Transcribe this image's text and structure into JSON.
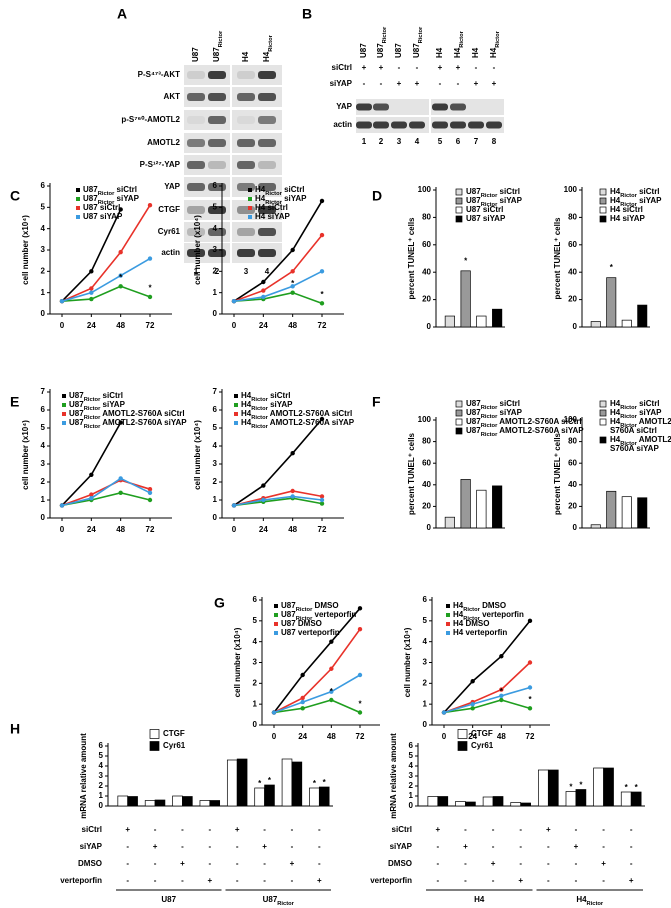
{
  "panel_labels": [
    "A",
    "B",
    "C",
    "D",
    "E",
    "F",
    "G",
    "H"
  ],
  "blot_a": {
    "lanes": [
      "U87",
      "U87Rictor",
      "H4",
      "H4Rictor"
    ],
    "rows": [
      "P-S⁴⁷³-AKT",
      "AKT",
      "p-S⁷⁶⁰-AMOTL2",
      "AMOTL2",
      "P-S¹²⁷-YAP",
      "YAP",
      "CTGF",
      "Cyr61",
      "actin"
    ],
    "lane_numbers": [
      1,
      2,
      3,
      4
    ]
  },
  "blot_b": {
    "lanes": [
      "U87",
      "U87Rictor",
      "U87",
      "U87Rictor",
      "H4",
      "H4Rictor",
      "H4",
      "H4Rictor"
    ],
    "conditions": [
      {
        "name": "siCtrl",
        "signs": [
          "+",
          "+",
          "-",
          "-",
          "+",
          "+",
          "-",
          "-"
        ]
      },
      {
        "name": "siYAP",
        "signs": [
          "-",
          "-",
          "+",
          "+",
          "-",
          "-",
          "+",
          "+"
        ]
      }
    ],
    "rows": [
      "YAP",
      "actin"
    ],
    "lane_numbers": [
      1,
      2,
      3,
      4,
      5,
      6,
      7,
      8
    ]
  },
  "chart_data": [
    {
      "type": "line",
      "ylabel": "cell number (x10⁴)",
      "x": [
        0,
        24,
        48,
        72
      ],
      "xlim": [
        0,
        72
      ],
      "xticks": [
        0,
        24,
        48,
        72
      ],
      "ylim": [
        0,
        6
      ],
      "yticks": [
        0,
        1,
        2,
        3,
        4,
        5,
        6
      ],
      "series": [
        {
          "name": "U87Rictor siCtrl",
          "color": "#000000",
          "values": [
            0.6,
            2.0,
            4.9,
            null
          ]
        },
        {
          "name": "U87Rictor siYAP",
          "color": "#1f9e1f",
          "values": [
            0.6,
            0.7,
            1.3,
            0.8
          ]
        },
        {
          "name": "U87 siCtrl",
          "color": "#e8322a",
          "values": [
            0.6,
            1.2,
            2.9,
            5.1
          ]
        },
        {
          "name": "U87 siYAP",
          "color": "#3b9be0",
          "values": [
            0.6,
            1.0,
            1.8,
            2.6
          ]
        }
      ],
      "annotations": [
        {
          "text": "*",
          "x": 48,
          "y": 1.7
        },
        {
          "text": "*",
          "x": 72,
          "y": 1.2
        }
      ]
    },
    {
      "type": "line",
      "ylabel": "cell number (x10⁴)",
      "x": [
        0,
        24,
        48,
        72
      ],
      "xlim": [
        0,
        72
      ],
      "xticks": [
        0,
        24,
        48,
        72
      ],
      "ylim": [
        0,
        6
      ],
      "yticks": [
        0,
        1,
        2,
        3,
        4,
        5,
        6
      ],
      "series": [
        {
          "name": "H4Rictor siCtrl",
          "color": "#000000",
          "values": [
            0.6,
            1.5,
            3.0,
            5.3
          ]
        },
        {
          "name": "H4Rictor siYAP",
          "color": "#1f9e1f",
          "values": [
            0.6,
            0.7,
            1.0,
            0.5
          ]
        },
        {
          "name": "H4 siCtrl",
          "color": "#e8322a",
          "values": [
            0.6,
            1.1,
            2.0,
            3.7
          ]
        },
        {
          "name": "H4 siYAP",
          "color": "#3b9be0",
          "values": [
            0.6,
            0.8,
            1.3,
            2.0
          ]
        }
      ],
      "annotations": [
        {
          "text": "*",
          "x": 48,
          "y": 1.4
        },
        {
          "text": "*",
          "x": 72,
          "y": 0.9
        }
      ]
    },
    {
      "type": "bar",
      "ylabel": "percent TUNEL⁺ cells",
      "ylim": [
        0,
        100
      ],
      "yticks": [
        0,
        20,
        40,
        60,
        80,
        100
      ],
      "series": [
        {
          "name": "U87Rictor siCtrl",
          "color": "#dddddd",
          "values": [
            8
          ]
        },
        {
          "name": "U87Rictor siYAP",
          "color": "#999999",
          "values": [
            41
          ]
        },
        {
          "name": "U87 siCtrl",
          "color": "#ffffff",
          "values": [
            8
          ]
        },
        {
          "name": "U87 siYAP",
          "color": "#000000",
          "values": [
            13
          ]
        }
      ],
      "annotations": [
        {
          "text": "*",
          "x": 0,
          "series": 1,
          "y": 48
        }
      ]
    },
    {
      "type": "bar",
      "ylabel": "percent TUNEL⁺ cells",
      "ylim": [
        0,
        100
      ],
      "yticks": [
        0,
        20,
        40,
        60,
        80,
        100
      ],
      "series": [
        {
          "name": "H4Rictor siCtrl",
          "color": "#dddddd",
          "values": [
            4
          ]
        },
        {
          "name": "H4Rictor siYAP",
          "color": "#999999",
          "values": [
            36
          ]
        },
        {
          "name": "H4 siCtrl",
          "color": "#ffffff",
          "values": [
            5
          ]
        },
        {
          "name": "H4 siYAP",
          "color": "#000000",
          "values": [
            16
          ]
        }
      ],
      "annotations": [
        {
          "text": "*",
          "x": 0,
          "series": 1,
          "y": 43
        }
      ]
    },
    {
      "type": "line",
      "ylabel": "cell number (x10⁴)",
      "x": [
        0,
        24,
        48,
        72
      ],
      "xlim": [
        0,
        72
      ],
      "xticks": [
        0,
        24,
        48,
        72
      ],
      "ylim": [
        0,
        7
      ],
      "yticks": [
        0,
        1,
        2,
        3,
        4,
        5,
        6,
        7
      ],
      "series": [
        {
          "name": "U87Rictor siCtrl",
          "color": "#000000",
          "values": [
            0.7,
            2.4,
            5.3,
            null
          ]
        },
        {
          "name": "U87Rictor siYAP",
          "color": "#1f9e1f",
          "values": [
            0.7,
            1.0,
            1.4,
            1.0
          ]
        },
        {
          "name": "U87Rictor AMOTL2-S760A siCtrl",
          "color": "#e8322a",
          "values": [
            0.7,
            1.3,
            2.1,
            1.6
          ]
        },
        {
          "name": "U87Rictor AMOTL2-S760A siYAP",
          "color": "#3b9be0",
          "values": [
            0.7,
            1.1,
            2.2,
            1.4
          ]
        }
      ]
    },
    {
      "type": "line",
      "ylabel": "cell number (x10⁴)",
      "x": [
        0,
        24,
        48,
        72
      ],
      "xlim": [
        0,
        72
      ],
      "xticks": [
        0,
        24,
        48,
        72
      ],
      "ylim": [
        0,
        7
      ],
      "yticks": [
        0,
        1,
        2,
        3,
        4,
        5,
        6,
        7
      ],
      "series": [
        {
          "name": "H4Rictor siCtrl",
          "color": "#000000",
          "values": [
            0.7,
            1.8,
            3.6,
            5.5
          ]
        },
        {
          "name": "H4Rictor siYAP",
          "color": "#1f9e1f",
          "values": [
            0.7,
            0.9,
            1.1,
            0.8
          ]
        },
        {
          "name": "H4Rictor AMOTL2-S760A siCtrl",
          "color": "#e8322a",
          "values": [
            0.7,
            1.1,
            1.5,
            1.2
          ]
        },
        {
          "name": "H4Rictor AMOTL2-S760A siYAP",
          "color": "#3b9be0",
          "values": [
            0.7,
            1.0,
            1.2,
            1.0
          ]
        }
      ]
    },
    {
      "type": "bar",
      "ylabel": "percent TUNEL⁺ cells",
      "ylim": [
        0,
        100
      ],
      "yticks": [
        0,
        20,
        40,
        60,
        80,
        100
      ],
      "series": [
        {
          "name": "U87Rictor siCtrl",
          "color": "#dddddd",
          "values": [
            10
          ]
        },
        {
          "name": "U87Rictor siYAP",
          "color": "#999999",
          "values": [
            45
          ]
        },
        {
          "name": "U87Rictor AMOTL2-S760A siCtrl",
          "color": "#ffffff",
          "values": [
            35
          ]
        },
        {
          "name": "U87Rictor AMOTL2-S760A siYAP",
          "color": "#000000",
          "values": [
            39
          ]
        }
      ]
    },
    {
      "type": "bar",
      "ylabel": "percent TUNEL⁺ cells",
      "ylim": [
        0,
        100
      ],
      "yticks": [
        0,
        20,
        40,
        60,
        80,
        100
      ],
      "series": [
        {
          "name": "H4Rictor siCtrl",
          "color": "#dddddd",
          "values": [
            3
          ]
        },
        {
          "name": "H4Rictor siYAP",
          "color": "#999999",
          "values": [
            34
          ]
        },
        {
          "name": "H4Rictor AMOTL2-S760A siCtrl",
          "color": "#ffffff",
          "values": [
            29
          ]
        },
        {
          "name": "H4Rictor AMOTL2-S760A siYAP",
          "color": "#000000",
          "values": [
            28
          ]
        }
      ]
    },
    {
      "type": "line",
      "ylabel": "cell number (x10⁴)",
      "x": [
        0,
        24,
        48,
        72
      ],
      "xlim": [
        0,
        72
      ],
      "xticks": [
        0,
        24,
        48,
        72
      ],
      "ylim": [
        0,
        6
      ],
      "yticks": [
        0,
        1,
        2,
        3,
        4,
        5,
        6
      ],
      "series": [
        {
          "name": "U87Rictor DMSO",
          "color": "#000000",
          "values": [
            0.6,
            2.4,
            4.0,
            5.6
          ]
        },
        {
          "name": "U87Rictor verteporfin",
          "color": "#1f9e1f",
          "values": [
            0.6,
            0.8,
            1.2,
            0.6
          ]
        },
        {
          "name": "U87 DMSO",
          "color": "#e8322a",
          "values": [
            0.6,
            1.3,
            2.7,
            4.6
          ]
        },
        {
          "name": "U87 verteporfin",
          "color": "#3b9be0",
          "values": [
            0.6,
            1.1,
            1.6,
            2.4
          ]
        }
      ],
      "annotations": [
        {
          "text": "*",
          "x": 48,
          "y": 1.6
        },
        {
          "text": "*",
          "x": 72,
          "y": 1.0
        }
      ]
    },
    {
      "type": "line",
      "ylabel": "cell number (x10⁴)",
      "x": [
        0,
        24,
        48,
        72
      ],
      "xlim": [
        0,
        72
      ],
      "xticks": [
        0,
        24,
        48,
        72
      ],
      "ylim": [
        0,
        6
      ],
      "yticks": [
        0,
        1,
        2,
        3,
        4,
        5,
        6
      ],
      "series": [
        {
          "name": "H4Rictor DMSO",
          "color": "#000000",
          "values": [
            0.6,
            2.1,
            3.3,
            5.0
          ]
        },
        {
          "name": "H4Rictor verteporfin",
          "color": "#1f9e1f",
          "values": [
            0.6,
            0.8,
            1.2,
            0.8
          ]
        },
        {
          "name": "H4 DMSO",
          "color": "#e8322a",
          "values": [
            0.6,
            1.1,
            1.7,
            3.0
          ]
        },
        {
          "name": "H4 verteporfin",
          "color": "#3b9be0",
          "values": [
            0.6,
            1.0,
            1.4,
            1.8
          ]
        }
      ],
      "annotations": [
        {
          "text": "*",
          "x": 48,
          "y": 1.6
        },
        {
          "text": "*",
          "x": 72,
          "y": 1.2
        }
      ]
    },
    {
      "type": "bar",
      "ylabel": "mRNA relative amount",
      "ylim": [
        0,
        6
      ],
      "yticks": [
        0,
        1,
        2,
        3,
        4,
        5,
        6
      ],
      "series": [
        {
          "name": "CTGF",
          "color": "#ffffff",
          "values": [
            1.0,
            0.55,
            1.0,
            0.55,
            4.6,
            1.8,
            4.7,
            1.8
          ]
        },
        {
          "name": "Cyr61",
          "color": "#000000",
          "values": [
            0.95,
            0.6,
            0.95,
            0.55,
            4.7,
            2.1,
            4.4,
            1.9
          ]
        }
      ],
      "treatments": [
        {
          "name": "siCtrl",
          "signs": [
            "+",
            "-",
            "-",
            "-",
            "+",
            "-",
            "-",
            "-"
          ]
        },
        {
          "name": "siYAP",
          "signs": [
            "-",
            "+",
            "-",
            "-",
            "-",
            "+",
            "-",
            "-"
          ]
        },
        {
          "name": "DMSO",
          "signs": [
            "-",
            "-",
            "+",
            "-",
            "-",
            "-",
            "+",
            "-"
          ]
        },
        {
          "name": "verteporfin",
          "signs": [
            "-",
            "-",
            "-",
            "+",
            "-",
            "-",
            "-",
            "+"
          ]
        }
      ],
      "groups": [
        {
          "label": "U87",
          "count": 4
        },
        {
          "label": "U87Rictor",
          "count": 4
        }
      ],
      "annotations": [
        {
          "text": "*",
          "x": 5,
          "series": 0,
          "y": 2.2
        },
        {
          "text": "*",
          "x": 5,
          "series": 1,
          "y": 2.5
        },
        {
          "text": "*",
          "x": 7,
          "series": 0,
          "y": 2.2
        },
        {
          "text": "*",
          "x": 7,
          "series": 1,
          "y": 2.3
        }
      ]
    },
    {
      "type": "bar",
      "ylabel": "mRNA relative amount",
      "ylim": [
        0,
        6
      ],
      "yticks": [
        0,
        1,
        2,
        3,
        4,
        5,
        6
      ],
      "series": [
        {
          "name": "CTGF",
          "color": "#ffffff",
          "values": [
            0.95,
            0.45,
            0.9,
            0.35,
            3.6,
            1.45,
            3.8,
            1.4
          ]
        },
        {
          "name": "Cyr61",
          "color": "#000000",
          "values": [
            0.95,
            0.4,
            0.95,
            0.3,
            3.6,
            1.65,
            3.8,
            1.4
          ]
        }
      ],
      "treatments": [
        {
          "name": "siCtrl",
          "signs": [
            "+",
            "-",
            "-",
            "-",
            "+",
            "-",
            "-",
            "-"
          ]
        },
        {
          "name": "siYAP",
          "signs": [
            "-",
            "+",
            "-",
            "-",
            "-",
            "+",
            "-",
            "-"
          ]
        },
        {
          "name": "DMSO",
          "signs": [
            "-",
            "-",
            "+",
            "-",
            "-",
            "-",
            "+",
            "-"
          ]
        },
        {
          "name": "verteporfin",
          "signs": [
            "-",
            "-",
            "-",
            "+",
            "-",
            "-",
            "-",
            "+"
          ]
        }
      ],
      "groups": [
        {
          "label": "H4",
          "count": 4
        },
        {
          "label": "H4Rictor",
          "count": 4
        }
      ],
      "annotations": [
        {
          "text": "*",
          "x": 5,
          "series": 0,
          "y": 1.85
        },
        {
          "text": "*",
          "x": 5,
          "series": 1,
          "y": 2.05
        },
        {
          "text": "*",
          "x": 7,
          "series": 0,
          "y": 1.8
        },
        {
          "text": "*",
          "x": 7,
          "series": 1,
          "y": 1.8
        }
      ]
    }
  ]
}
